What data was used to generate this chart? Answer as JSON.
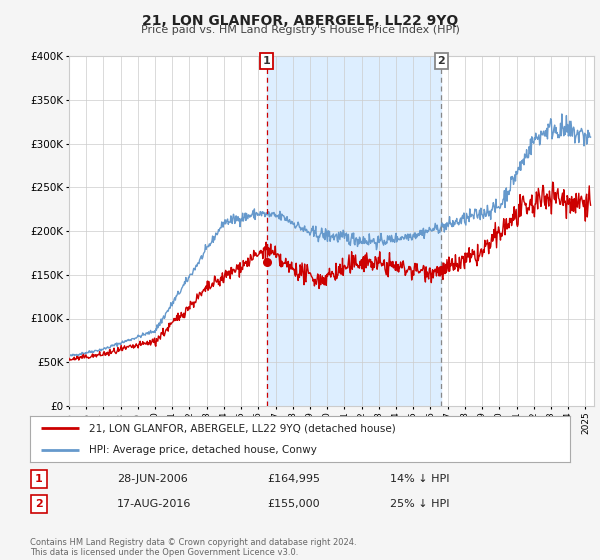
{
  "title": "21, LON GLANFOR, ABERGELE, LL22 9YQ",
  "subtitle": "Price paid vs. HM Land Registry's House Price Index (HPI)",
  "ylim": [
    0,
    400000
  ],
  "yticks": [
    0,
    50000,
    100000,
    150000,
    200000,
    250000,
    300000,
    350000,
    400000
  ],
  "ytick_labels": [
    "£0",
    "£50K",
    "£100K",
    "£150K",
    "£200K",
    "£250K",
    "£300K",
    "£350K",
    "£400K"
  ],
  "xlim_start": 1995.0,
  "xlim_end": 2025.5,
  "hpi_color": "#6699cc",
  "price_color": "#cc0000",
  "marker1_date": 2006.49,
  "marker1_price": 164995,
  "marker1_label": "28-JUN-2006",
  "marker1_amount": "£164,995",
  "marker1_pct": "14% ↓ HPI",
  "marker2_date": 2016.63,
  "marker2_price": 155000,
  "marker2_label": "17-AUG-2016",
  "marker2_amount": "£155,000",
  "marker2_pct": "25% ↓ HPI",
  "legend_line1": "21, LON GLANFOR, ABERGELE, LL22 9YQ (detached house)",
  "legend_line2": "HPI: Average price, detached house, Conwy",
  "footer_line1": "Contains HM Land Registry data © Crown copyright and database right 2024.",
  "footer_line2": "This data is licensed under the Open Government Licence v3.0.",
  "background_color": "#f5f5f5",
  "plot_background": "#ffffff",
  "grid_color": "#cccccc",
  "shaded_region_color": "#ddeeff",
  "marker2_line_color": "#888888"
}
